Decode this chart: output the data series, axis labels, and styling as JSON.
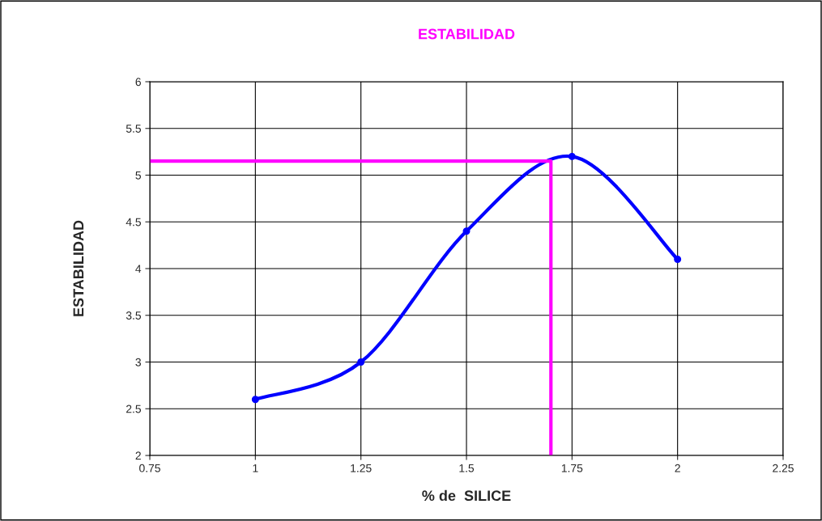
{
  "chart_data": {
    "type": "line",
    "title": "ESTABILIDAD",
    "xlabel": "% de  SILICE",
    "ylabel": "ESTABILIDAD",
    "xlim": [
      0.75,
      2.25
    ],
    "xticks": [
      0.75,
      1,
      1.25,
      1.5,
      1.75,
      2,
      2.25
    ],
    "ylim": [
      2,
      6
    ],
    "yticks": [
      2,
      2.5,
      3,
      3.5,
      4,
      4.5,
      5,
      5.5,
      6
    ],
    "grid": true,
    "legend": false,
    "series": [
      {
        "color": "#0000ff",
        "marker": "circle",
        "x": [
          1,
          1.25,
          1.5,
          1.75,
          2
        ],
        "values": [
          2.6,
          3.0,
          4.4,
          5.2,
          4.1
        ]
      },
      {
        "color": "#ff00ff",
        "marker": "none",
        "x": [
          0.75,
          1.7,
          1.7
        ],
        "values": [
          5.15,
          5.15,
          2
        ]
      }
    ]
  }
}
